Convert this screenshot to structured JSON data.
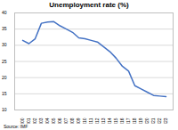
{
  "chart_data": {
    "type": "line",
    "title": "Unemployment rate (%)",
    "x": [
      "2000",
      "2001",
      "2002",
      "2003",
      "2004",
      "2005",
      "2006",
      "2007",
      "2008",
      "2009",
      "2010",
      "2011",
      "2012",
      "2013",
      "2014",
      "2015",
      "2016",
      "2017",
      "2018",
      "2019",
      "2020",
      "2021",
      "2022",
      "2023"
    ],
    "series": [
      {
        "name": "Unemployment rate",
        "color": "#4472c4",
        "values": [
          31.5,
          30.5,
          32,
          36.8,
          37.2,
          37.3,
          36,
          35,
          34,
          32.3,
          32,
          31.5,
          31,
          29.5,
          28,
          26,
          23.5,
          22,
          17.5,
          16.5,
          15.5,
          14.5,
          14.3,
          14.1
        ]
      }
    ],
    "ylim": [
      10,
      40
    ],
    "yticks": [
      10,
      15,
      20,
      25,
      30,
      35,
      40
    ],
    "grid": true,
    "caption": "Source: IMF"
  }
}
